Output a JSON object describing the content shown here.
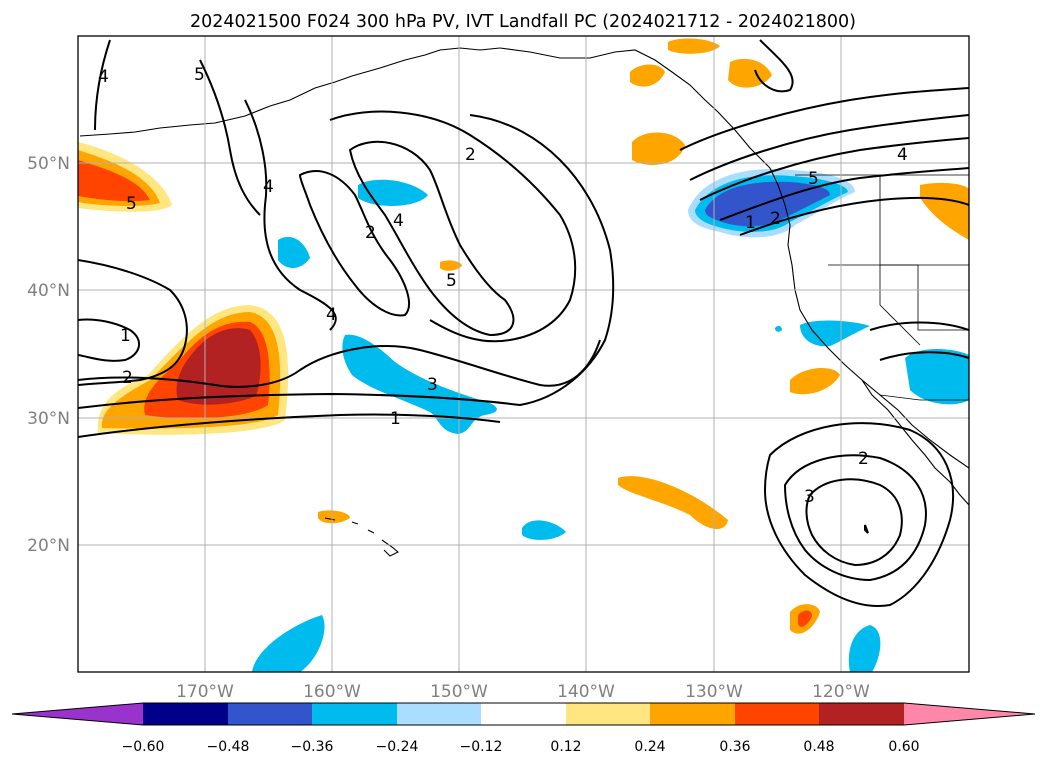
{
  "title": "2024021500 F024 300 hPa PV, IVT Landfall PC (2024021712 - 2024021800)",
  "lat_labels": [
    "50°N",
    "40°N",
    "30°N",
    "20°N"
  ],
  "lon_labels": [
    "170°W",
    "160°W",
    "150°W",
    "140°W",
    "130°W",
    "120°W"
  ],
  "colorbar": {
    "ticks": [
      "−0.60",
      "−0.48",
      "−0.36",
      "−0.24",
      "−0.12",
      "0.12",
      "0.24",
      "0.36",
      "0.48",
      "0.60"
    ],
    "colors": [
      "#9933cc",
      "#000088",
      "#3355cc",
      "#00bbee",
      "#aaddff",
      "#ffffff",
      "#ffe680",
      "#ffa500",
      "#ff4400",
      "#b22222",
      "#ff88aa"
    ]
  },
  "contour_labels": [
    "4",
    "5",
    "4",
    "2",
    "2",
    "4",
    "5",
    "4",
    "1",
    "2",
    "3",
    "1",
    "1",
    "2",
    "5",
    "4",
    "2",
    "3",
    "5"
  ],
  "colors": {
    "orange": "#ffa500",
    "red_orange": "#ff4400",
    "dark_red": "#b22222",
    "light_yellow": "#ffe680",
    "cyan": "#00bbee",
    "light_blue": "#aaddff",
    "royal_blue": "#3355cc",
    "grid": "#b0b0b0"
  }
}
